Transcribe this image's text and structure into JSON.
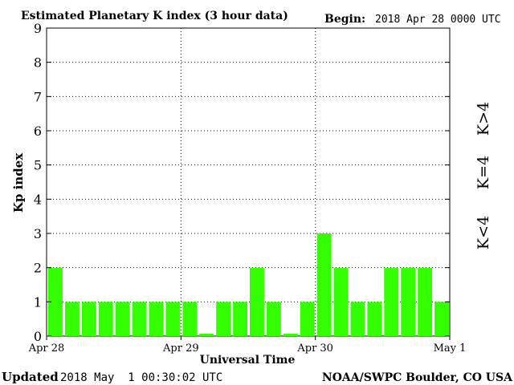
{
  "header": {
    "title": "Estimated Planetary K index (3 hour data)",
    "begin_label": "Begin:",
    "begin_value": "2018 Apr 28 0000 UTC"
  },
  "footer": {
    "updated_label": "Updated",
    "updated_value": "2018 May  1 00:30:02 UTC",
    "source": "NOAA/SWPC Boulder, CO USA"
  },
  "legend": {
    "below": "K<4",
    "equal": "K=4",
    "above": "K>4"
  },
  "colors": {
    "below": "#33ff00",
    "equal": "#ffcc00",
    "above": "#ff3300",
    "grid": "#000000"
  },
  "chart_data": {
    "type": "bar",
    "title": "Estimated Planetary K index (3 hour data)",
    "xlabel": "Universal Time",
    "ylabel": "Kp index",
    "ylim": [
      0,
      9
    ],
    "y_ticks": [
      "0",
      "1",
      "2",
      "3",
      "4",
      "5",
      "6",
      "7",
      "8",
      "9"
    ],
    "x_ticks": [
      "Apr 28",
      "Apr 29",
      "Apr 30",
      "May 1"
    ],
    "grid": true,
    "values": [
      2,
      1,
      1,
      1,
      1,
      1,
      1,
      1,
      1,
      0.07,
      1,
      1,
      2,
      1,
      0.07,
      1,
      3,
      2,
      1,
      1,
      2,
      2,
      2,
      1
    ]
  }
}
